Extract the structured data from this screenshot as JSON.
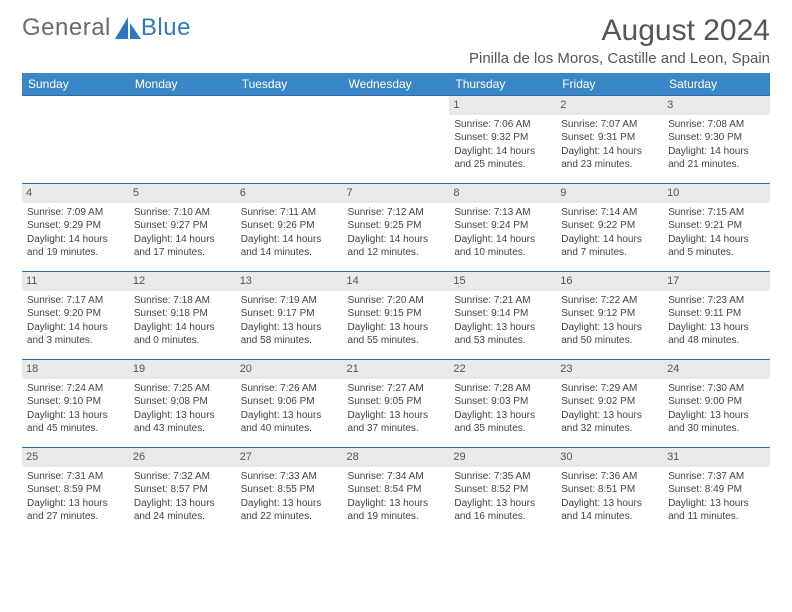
{
  "logo": {
    "part1": "General",
    "part2": "Blue"
  },
  "title": "August 2024",
  "location": "Pinilla de los Moros, Castille and Leon, Spain",
  "header_bg": "#3a87c8",
  "border_color": "#2f6ea8",
  "daynum_bg": "#e9e9e9",
  "weekdays": [
    "Sunday",
    "Monday",
    "Tuesday",
    "Wednesday",
    "Thursday",
    "Friday",
    "Saturday"
  ],
  "weeks": [
    [
      null,
      null,
      null,
      null,
      {
        "n": "1",
        "sr": "7:06 AM",
        "ss": "9:32 PM",
        "dl": "14 hours and 25 minutes."
      },
      {
        "n": "2",
        "sr": "7:07 AM",
        "ss": "9:31 PM",
        "dl": "14 hours and 23 minutes."
      },
      {
        "n": "3",
        "sr": "7:08 AM",
        "ss": "9:30 PM",
        "dl": "14 hours and 21 minutes."
      }
    ],
    [
      {
        "n": "4",
        "sr": "7:09 AM",
        "ss": "9:29 PM",
        "dl": "14 hours and 19 minutes."
      },
      {
        "n": "5",
        "sr": "7:10 AM",
        "ss": "9:27 PM",
        "dl": "14 hours and 17 minutes."
      },
      {
        "n": "6",
        "sr": "7:11 AM",
        "ss": "9:26 PM",
        "dl": "14 hours and 14 minutes."
      },
      {
        "n": "7",
        "sr": "7:12 AM",
        "ss": "9:25 PM",
        "dl": "14 hours and 12 minutes."
      },
      {
        "n": "8",
        "sr": "7:13 AM",
        "ss": "9:24 PM",
        "dl": "14 hours and 10 minutes."
      },
      {
        "n": "9",
        "sr": "7:14 AM",
        "ss": "9:22 PM",
        "dl": "14 hours and 7 minutes."
      },
      {
        "n": "10",
        "sr": "7:15 AM",
        "ss": "9:21 PM",
        "dl": "14 hours and 5 minutes."
      }
    ],
    [
      {
        "n": "11",
        "sr": "7:17 AM",
        "ss": "9:20 PM",
        "dl": "14 hours and 3 minutes."
      },
      {
        "n": "12",
        "sr": "7:18 AM",
        "ss": "9:18 PM",
        "dl": "14 hours and 0 minutes."
      },
      {
        "n": "13",
        "sr": "7:19 AM",
        "ss": "9:17 PM",
        "dl": "13 hours and 58 minutes."
      },
      {
        "n": "14",
        "sr": "7:20 AM",
        "ss": "9:15 PM",
        "dl": "13 hours and 55 minutes."
      },
      {
        "n": "15",
        "sr": "7:21 AM",
        "ss": "9:14 PM",
        "dl": "13 hours and 53 minutes."
      },
      {
        "n": "16",
        "sr": "7:22 AM",
        "ss": "9:12 PM",
        "dl": "13 hours and 50 minutes."
      },
      {
        "n": "17",
        "sr": "7:23 AM",
        "ss": "9:11 PM",
        "dl": "13 hours and 48 minutes."
      }
    ],
    [
      {
        "n": "18",
        "sr": "7:24 AM",
        "ss": "9:10 PM",
        "dl": "13 hours and 45 minutes."
      },
      {
        "n": "19",
        "sr": "7:25 AM",
        "ss": "9:08 PM",
        "dl": "13 hours and 43 minutes."
      },
      {
        "n": "20",
        "sr": "7:26 AM",
        "ss": "9:06 PM",
        "dl": "13 hours and 40 minutes."
      },
      {
        "n": "21",
        "sr": "7:27 AM",
        "ss": "9:05 PM",
        "dl": "13 hours and 37 minutes."
      },
      {
        "n": "22",
        "sr": "7:28 AM",
        "ss": "9:03 PM",
        "dl": "13 hours and 35 minutes."
      },
      {
        "n": "23",
        "sr": "7:29 AM",
        "ss": "9:02 PM",
        "dl": "13 hours and 32 minutes."
      },
      {
        "n": "24",
        "sr": "7:30 AM",
        "ss": "9:00 PM",
        "dl": "13 hours and 30 minutes."
      }
    ],
    [
      {
        "n": "25",
        "sr": "7:31 AM",
        "ss": "8:59 PM",
        "dl": "13 hours and 27 minutes."
      },
      {
        "n": "26",
        "sr": "7:32 AM",
        "ss": "8:57 PM",
        "dl": "13 hours and 24 minutes."
      },
      {
        "n": "27",
        "sr": "7:33 AM",
        "ss": "8:55 PM",
        "dl": "13 hours and 22 minutes."
      },
      {
        "n": "28",
        "sr": "7:34 AM",
        "ss": "8:54 PM",
        "dl": "13 hours and 19 minutes."
      },
      {
        "n": "29",
        "sr": "7:35 AM",
        "ss": "8:52 PM",
        "dl": "13 hours and 16 minutes."
      },
      {
        "n": "30",
        "sr": "7:36 AM",
        "ss": "8:51 PM",
        "dl": "13 hours and 14 minutes."
      },
      {
        "n": "31",
        "sr": "7:37 AM",
        "ss": "8:49 PM",
        "dl": "13 hours and 11 minutes."
      }
    ]
  ],
  "labels": {
    "sunrise": "Sunrise: ",
    "sunset": "Sunset: ",
    "daylight": "Daylight: "
  }
}
